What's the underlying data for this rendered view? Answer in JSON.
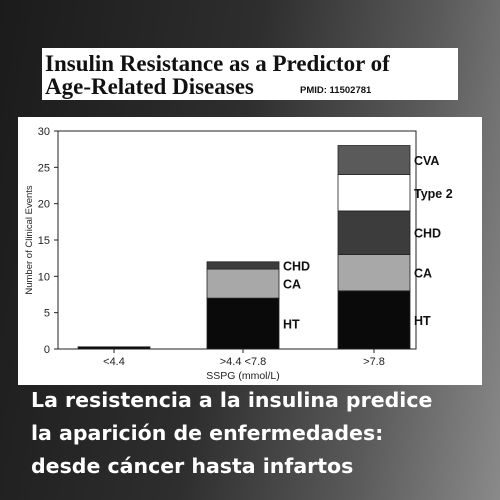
{
  "header": {
    "title_line1": "Insulin Resistance as a Predictor of",
    "title_line2": "Age-Related Diseases",
    "pmid": "PMID: 11502781"
  },
  "caption": {
    "line1": "La resistencia a la insulina predice",
    "line2": "la aparición de enfermedades:",
    "line3": "desde cáncer hasta infartos"
  },
  "chart_data": {
    "type": "bar",
    "stacked": true,
    "xlabel": "SSPG (mmol/L)",
    "ylabel": "Number of Clinical Events",
    "ylim": [
      0,
      30
    ],
    "yticks": [
      0,
      5,
      10,
      15,
      20,
      25,
      30
    ],
    "categories": [
      "<4.4",
      ">4.4 <7.8",
      ">7.8"
    ],
    "series": [
      {
        "name": "HT",
        "values": [
          0.3,
          7,
          8
        ],
        "color": "#0a0a0a"
      },
      {
        "name": "CA",
        "values": [
          0,
          4,
          5
        ],
        "color": "#a8a8a8"
      },
      {
        "name": "CHD",
        "values": [
          0,
          1,
          6
        ],
        "color": "#3c3c3c"
      },
      {
        "name": "Type 2",
        "values": [
          0,
          0,
          5
        ],
        "color": "#ffffff"
      },
      {
        "name": "CVA",
        "values": [
          0,
          0,
          4
        ],
        "color": "#5a5a5a"
      }
    ],
    "grid": false,
    "legend": "inline labels to the right of the bars"
  }
}
